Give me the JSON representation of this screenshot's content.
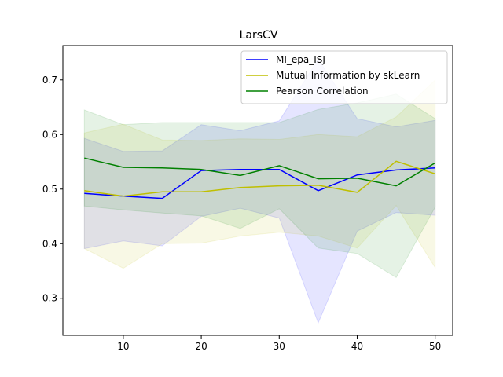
{
  "chart_data": {
    "type": "line",
    "title": "LarsCV",
    "xlabel": "",
    "ylabel": "",
    "xlim": [
      2.25,
      52.25
    ],
    "ylim": [
      0.232,
      0.763
    ],
    "x_ticks": [
      10,
      20,
      30,
      40,
      50
    ],
    "y_ticks": [
      0.3,
      0.4,
      0.5,
      0.6,
      0.7
    ],
    "grid": false,
    "legend_position": "top-right",
    "x": [
      5,
      10,
      15,
      20,
      25,
      30,
      35,
      40,
      45,
      50
    ],
    "series": [
      {
        "name": "MI_epa_ISJ",
        "color": "#0000ff",
        "values": [
          0.492,
          0.487,
          0.483,
          0.534,
          0.536,
          0.536,
          0.497,
          0.526,
          0.535,
          0.539
        ],
        "band_upper": [
          0.593,
          0.569,
          0.57,
          0.618,
          0.607,
          0.625,
          0.738,
          0.629,
          0.614,
          0.626
        ],
        "band_lower": [
          0.391,
          0.405,
          0.396,
          0.45,
          0.465,
          0.447,
          0.255,
          0.423,
          0.457,
          0.452
        ]
      },
      {
        "name": "Mutual Information by skLearn",
        "color": "#bfbf00",
        "values": [
          0.497,
          0.487,
          0.495,
          0.495,
          0.503,
          0.506,
          0.507,
          0.494,
          0.551,
          0.528
        ],
        "band_upper": [
          0.603,
          0.619,
          0.59,
          0.589,
          0.592,
          0.591,
          0.6,
          0.596,
          0.632,
          0.7
        ],
        "band_lower": [
          0.391,
          0.355,
          0.4,
          0.401,
          0.414,
          0.421,
          0.414,
          0.392,
          0.47,
          0.356
        ]
      },
      {
        "name": "Pearson Correlation",
        "color": "#008000",
        "values": [
          0.557,
          0.54,
          0.539,
          0.536,
          0.525,
          0.543,
          0.519,
          0.52,
          0.506,
          0.548
        ],
        "band_upper": [
          0.645,
          0.618,
          0.622,
          0.622,
          0.622,
          0.622,
          0.646,
          0.658,
          0.674,
          0.629
        ],
        "band_lower": [
          0.469,
          0.462,
          0.456,
          0.451,
          0.428,
          0.464,
          0.392,
          0.382,
          0.338,
          0.467
        ]
      }
    ]
  }
}
